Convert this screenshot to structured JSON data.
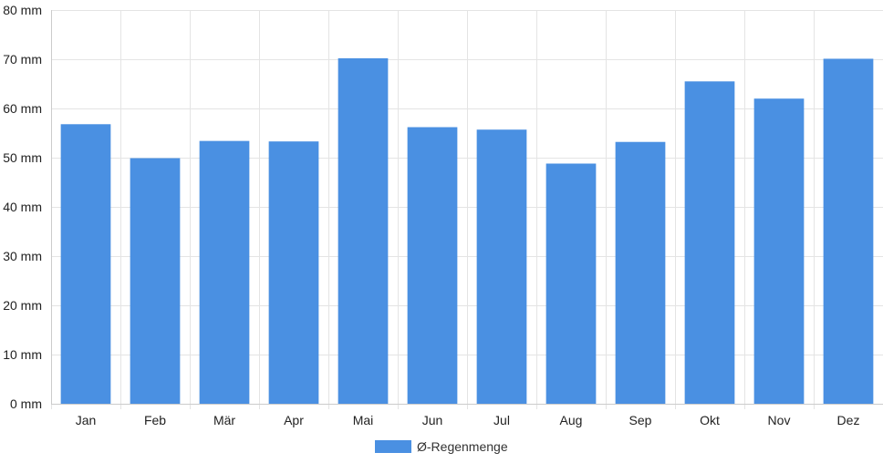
{
  "chart_data": {
    "type": "bar",
    "categories": [
      "Jan",
      "Feb",
      "Mär",
      "Apr",
      "Mai",
      "Jun",
      "Jul",
      "Aug",
      "Sep",
      "Okt",
      "Nov",
      "Dez"
    ],
    "series": [
      {
        "name": "Ø-Regenmenge",
        "values": [
          56.8,
          49.9,
          53.4,
          53.3,
          70.2,
          56.2,
          55.7,
          48.8,
          53.2,
          65.5,
          62.0,
          70.1
        ]
      }
    ],
    "ylim": [
      0,
      80
    ],
    "y_ticks": [
      0,
      10,
      20,
      30,
      40,
      50,
      60,
      70,
      80
    ],
    "y_tick_labels": [
      "0 mm",
      "10 mm",
      "20 mm",
      "30 mm",
      "40 mm",
      "50 mm",
      "60 mm",
      "70 mm",
      "80 mm"
    ],
    "grid": true,
    "legend_position": "bottom",
    "colors": {
      "bar": "#4a90e2",
      "grid": "#e4e4e4",
      "axis": "#cccccc"
    }
  }
}
